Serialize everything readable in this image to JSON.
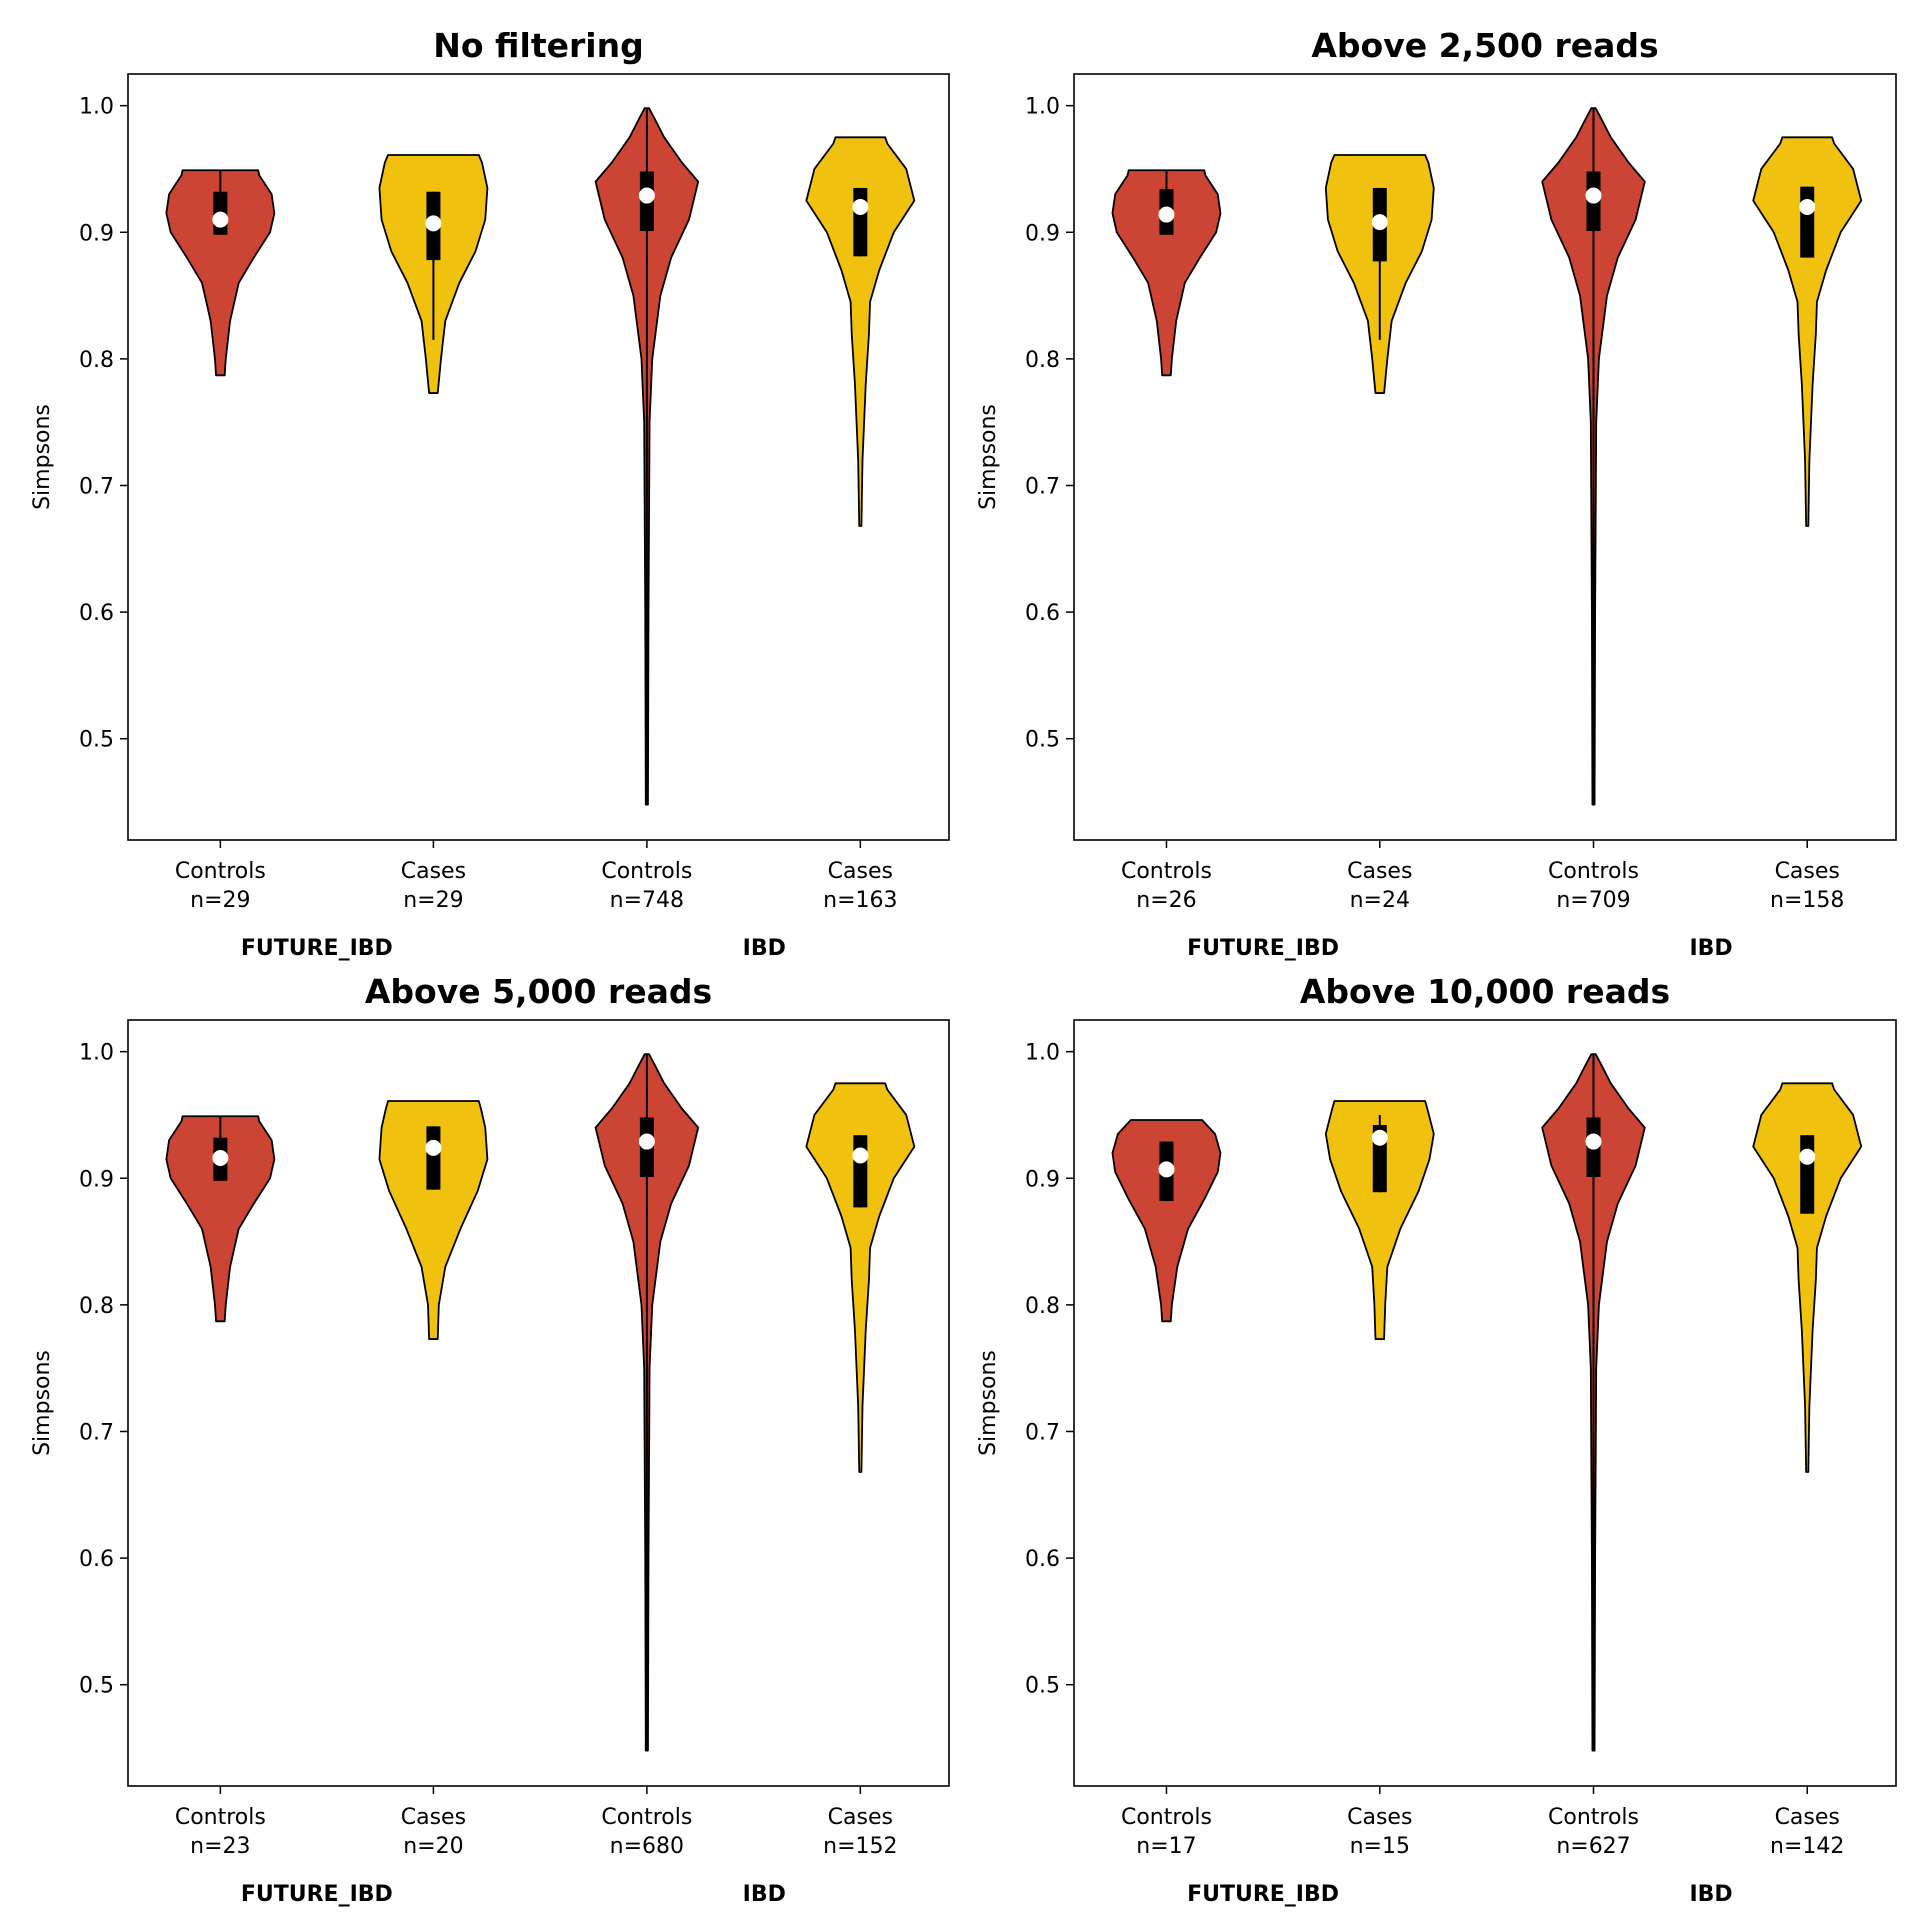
{
  "colors": {
    "controls": "#cc4433",
    "cases": "#f0c20f",
    "box": "#000000",
    "median": "#ffffff"
  },
  "chart_data": [
    {
      "type": "violin",
      "title": "No filtering",
      "ylabel": "Simpsons",
      "ylim": [
        0.42,
        1.025
      ],
      "yticks": [
        "0.5",
        "0.6",
        "0.7",
        "0.8",
        "0.9",
        "1.0"
      ],
      "groups": [
        "FUTURE_IBD",
        "IBD"
      ],
      "violins": [
        {
          "group": "FUTURE_IBD",
          "label": "Controls",
          "n": "n=29",
          "kind": "controls",
          "min": 0.787,
          "max": 0.949,
          "q1": 0.898,
          "median": 0.91,
          "q3": 0.932,
          "whisker_low": 0.898,
          "whisker_high": 0.949,
          "profile": [
            [
              0.787,
              0.08
            ],
            [
              0.8,
              0.1
            ],
            [
              0.83,
              0.18
            ],
            [
              0.86,
              0.34
            ],
            [
              0.88,
              0.62
            ],
            [
              0.9,
              0.92
            ],
            [
              0.915,
              1.0
            ],
            [
              0.93,
              0.95
            ],
            [
              0.945,
              0.72
            ],
            [
              0.949,
              0.7
            ]
          ]
        },
        {
          "group": "FUTURE_IBD",
          "label": "Cases",
          "n": "n=29",
          "kind": "cases",
          "min": 0.773,
          "max": 0.961,
          "q1": 0.878,
          "median": 0.907,
          "q3": 0.932,
          "whisker_low": 0.815,
          "whisker_high": 0.932,
          "profile": [
            [
              0.773,
              0.08
            ],
            [
              0.8,
              0.14
            ],
            [
              0.83,
              0.22
            ],
            [
              0.86,
              0.48
            ],
            [
              0.885,
              0.78
            ],
            [
              0.91,
              0.96
            ],
            [
              0.935,
              1.0
            ],
            [
              0.955,
              0.9
            ],
            [
              0.961,
              0.84
            ]
          ]
        },
        {
          "group": "IBD",
          "label": "Controls",
          "n": "n=748",
          "kind": "controls",
          "min": 0.448,
          "max": 0.998,
          "q1": 0.901,
          "median": 0.929,
          "q3": 0.948,
          "whisker_low": 0.448,
          "whisker_high": 0.998,
          "profile": [
            [
              0.448,
              0.02
            ],
            [
              0.6,
              0.03
            ],
            [
              0.75,
              0.05
            ],
            [
              0.8,
              0.1
            ],
            [
              0.85,
              0.25
            ],
            [
              0.88,
              0.45
            ],
            [
              0.91,
              0.78
            ],
            [
              0.94,
              0.95
            ],
            [
              0.955,
              0.65
            ],
            [
              0.975,
              0.32
            ],
            [
              0.99,
              0.14
            ],
            [
              0.998,
              0.04
            ]
          ]
        },
        {
          "group": "IBD",
          "label": "Cases",
          "n": "n=163",
          "kind": "cases",
          "min": 0.668,
          "max": 0.975,
          "q1": 0.881,
          "median": 0.92,
          "q3": 0.935,
          "whisker_low": 0.881,
          "whisker_high": 0.935,
          "profile": [
            [
              0.668,
              0.02
            ],
            [
              0.72,
              0.04
            ],
            [
              0.78,
              0.1
            ],
            [
              0.82,
              0.16
            ],
            [
              0.845,
              0.18
            ],
            [
              0.87,
              0.35
            ],
            [
              0.9,
              0.62
            ],
            [
              0.925,
              1.0
            ],
            [
              0.95,
              0.85
            ],
            [
              0.97,
              0.5
            ],
            [
              0.975,
              0.46
            ]
          ]
        }
      ]
    },
    {
      "type": "violin",
      "title": "Above 2,500 reads",
      "ylabel": "Simpsons",
      "ylim": [
        0.42,
        1.025
      ],
      "yticks": [
        "0.5",
        "0.6",
        "0.7",
        "0.8",
        "0.9",
        "1.0"
      ],
      "groups": [
        "FUTURE_IBD",
        "IBD"
      ],
      "violins": [
        {
          "group": "FUTURE_IBD",
          "label": "Controls",
          "n": "n=26",
          "kind": "controls",
          "min": 0.787,
          "max": 0.949,
          "q1": 0.898,
          "median": 0.914,
          "q3": 0.934,
          "whisker_low": 0.898,
          "whisker_high": 0.949,
          "profile": [
            [
              0.787,
              0.08
            ],
            [
              0.8,
              0.1
            ],
            [
              0.83,
              0.18
            ],
            [
              0.86,
              0.34
            ],
            [
              0.88,
              0.62
            ],
            [
              0.9,
              0.92
            ],
            [
              0.915,
              1.0
            ],
            [
              0.93,
              0.95
            ],
            [
              0.945,
              0.72
            ],
            [
              0.949,
              0.7
            ]
          ]
        },
        {
          "group": "FUTURE_IBD",
          "label": "Cases",
          "n": "n=24",
          "kind": "cases",
          "min": 0.773,
          "max": 0.961,
          "q1": 0.877,
          "median": 0.908,
          "q3": 0.935,
          "whisker_low": 0.815,
          "whisker_high": 0.935,
          "profile": [
            [
              0.773,
              0.08
            ],
            [
              0.8,
              0.14
            ],
            [
              0.83,
              0.22
            ],
            [
              0.86,
              0.48
            ],
            [
              0.885,
              0.78
            ],
            [
              0.91,
              0.96
            ],
            [
              0.935,
              1.0
            ],
            [
              0.955,
              0.9
            ],
            [
              0.961,
              0.84
            ]
          ]
        },
        {
          "group": "IBD",
          "label": "Controls",
          "n": "n=709",
          "kind": "controls",
          "min": 0.448,
          "max": 0.998,
          "q1": 0.901,
          "median": 0.929,
          "q3": 0.948,
          "whisker_low": 0.448,
          "whisker_high": 0.998,
          "profile": [
            [
              0.448,
              0.02
            ],
            [
              0.6,
              0.03
            ],
            [
              0.75,
              0.05
            ],
            [
              0.8,
              0.1
            ],
            [
              0.85,
              0.25
            ],
            [
              0.88,
              0.45
            ],
            [
              0.91,
              0.78
            ],
            [
              0.94,
              0.95
            ],
            [
              0.955,
              0.65
            ],
            [
              0.975,
              0.32
            ],
            [
              0.99,
              0.14
            ],
            [
              0.998,
              0.04
            ]
          ]
        },
        {
          "group": "IBD",
          "label": "Cases",
          "n": "n=158",
          "kind": "cases",
          "min": 0.668,
          "max": 0.975,
          "q1": 0.88,
          "median": 0.92,
          "q3": 0.936,
          "whisker_low": 0.88,
          "whisker_high": 0.936,
          "profile": [
            [
              0.668,
              0.02
            ],
            [
              0.72,
              0.04
            ],
            [
              0.78,
              0.1
            ],
            [
              0.82,
              0.16
            ],
            [
              0.845,
              0.18
            ],
            [
              0.87,
              0.35
            ],
            [
              0.9,
              0.62
            ],
            [
              0.925,
              1.0
            ],
            [
              0.95,
              0.85
            ],
            [
              0.97,
              0.5
            ],
            [
              0.975,
              0.46
            ]
          ]
        }
      ]
    },
    {
      "type": "violin",
      "title": "Above 5,000 reads",
      "ylabel": "Simpsons",
      "ylim": [
        0.42,
        1.025
      ],
      "yticks": [
        "0.5",
        "0.6",
        "0.7",
        "0.8",
        "0.9",
        "1.0"
      ],
      "groups": [
        "FUTURE_IBD",
        "IBD"
      ],
      "violins": [
        {
          "group": "FUTURE_IBD",
          "label": "Controls",
          "n": "n=23",
          "kind": "controls",
          "min": 0.787,
          "max": 0.949,
          "q1": 0.898,
          "median": 0.916,
          "q3": 0.932,
          "whisker_low": 0.898,
          "whisker_high": 0.949,
          "profile": [
            [
              0.787,
              0.08
            ],
            [
              0.8,
              0.1
            ],
            [
              0.83,
              0.18
            ],
            [
              0.86,
              0.34
            ],
            [
              0.88,
              0.62
            ],
            [
              0.9,
              0.92
            ],
            [
              0.915,
              1.0
            ],
            [
              0.93,
              0.95
            ],
            [
              0.945,
              0.72
            ],
            [
              0.949,
              0.7
            ]
          ]
        },
        {
          "group": "FUTURE_IBD",
          "label": "Cases",
          "n": "n=20",
          "kind": "cases",
          "min": 0.773,
          "max": 0.961,
          "q1": 0.891,
          "median": 0.924,
          "q3": 0.941,
          "whisker_low": 0.891,
          "whisker_high": 0.941,
          "profile": [
            [
              0.773,
              0.08
            ],
            [
              0.8,
              0.1
            ],
            [
              0.83,
              0.22
            ],
            [
              0.86,
              0.5
            ],
            [
              0.89,
              0.82
            ],
            [
              0.915,
              1.0
            ],
            [
              0.94,
              0.96
            ],
            [
              0.955,
              0.88
            ],
            [
              0.961,
              0.84
            ]
          ]
        },
        {
          "group": "IBD",
          "label": "Controls",
          "n": "n=680",
          "kind": "controls",
          "min": 0.448,
          "max": 0.998,
          "q1": 0.901,
          "median": 0.929,
          "q3": 0.948,
          "whisker_low": 0.448,
          "whisker_high": 0.998,
          "profile": [
            [
              0.448,
              0.02
            ],
            [
              0.6,
              0.03
            ],
            [
              0.75,
              0.05
            ],
            [
              0.8,
              0.1
            ],
            [
              0.85,
              0.25
            ],
            [
              0.88,
              0.45
            ],
            [
              0.91,
              0.78
            ],
            [
              0.94,
              0.95
            ],
            [
              0.955,
              0.65
            ],
            [
              0.975,
              0.32
            ],
            [
              0.99,
              0.14
            ],
            [
              0.998,
              0.04
            ]
          ]
        },
        {
          "group": "IBD",
          "label": "Cases",
          "n": "n=152",
          "kind": "cases",
          "min": 0.668,
          "max": 0.975,
          "q1": 0.877,
          "median": 0.918,
          "q3": 0.934,
          "whisker_low": 0.877,
          "whisker_high": 0.934,
          "profile": [
            [
              0.668,
              0.02
            ],
            [
              0.72,
              0.04
            ],
            [
              0.78,
              0.1
            ],
            [
              0.82,
              0.16
            ],
            [
              0.845,
              0.18
            ],
            [
              0.87,
              0.35
            ],
            [
              0.9,
              0.62
            ],
            [
              0.925,
              1.0
            ],
            [
              0.95,
              0.85
            ],
            [
              0.97,
              0.5
            ],
            [
              0.975,
              0.46
            ]
          ]
        }
      ]
    },
    {
      "type": "violin",
      "title": "Above 10,000 reads",
      "ylabel": "Simpsons",
      "ylim": [
        0.42,
        1.025
      ],
      "yticks": [
        "0.5",
        "0.6",
        "0.7",
        "0.8",
        "0.9",
        "1.0"
      ],
      "groups": [
        "FUTURE_IBD",
        "IBD"
      ],
      "violins": [
        {
          "group": "FUTURE_IBD",
          "label": "Controls",
          "n": "n=17",
          "kind": "controls",
          "min": 0.787,
          "max": 0.946,
          "q1": 0.882,
          "median": 0.907,
          "q3": 0.929,
          "whisker_low": 0.882,
          "whisker_high": 0.929,
          "profile": [
            [
              0.787,
              0.08
            ],
            [
              0.8,
              0.1
            ],
            [
              0.83,
              0.2
            ],
            [
              0.86,
              0.4
            ],
            [
              0.885,
              0.72
            ],
            [
              0.905,
              0.95
            ],
            [
              0.92,
              1.0
            ],
            [
              0.935,
              0.9
            ],
            [
              0.946,
              0.66
            ]
          ]
        },
        {
          "group": "FUTURE_IBD",
          "label": "Cases",
          "n": "n=15",
          "kind": "cases",
          "min": 0.773,
          "max": 0.961,
          "q1": 0.889,
          "median": 0.932,
          "q3": 0.942,
          "whisker_low": 0.889,
          "whisker_high": 0.95,
          "profile": [
            [
              0.773,
              0.08
            ],
            [
              0.8,
              0.1
            ],
            [
              0.83,
              0.14
            ],
            [
              0.86,
              0.38
            ],
            [
              0.89,
              0.72
            ],
            [
              0.915,
              0.92
            ],
            [
              0.935,
              1.0
            ],
            [
              0.955,
              0.88
            ],
            [
              0.961,
              0.84
            ]
          ]
        },
        {
          "group": "IBD",
          "label": "Controls",
          "n": "n=627",
          "kind": "controls",
          "min": 0.448,
          "max": 0.998,
          "q1": 0.901,
          "median": 0.929,
          "q3": 0.948,
          "whisker_low": 0.448,
          "whisker_high": 0.998,
          "profile": [
            [
              0.448,
              0.02
            ],
            [
              0.6,
              0.03
            ],
            [
              0.75,
              0.05
            ],
            [
              0.8,
              0.1
            ],
            [
              0.85,
              0.25
            ],
            [
              0.88,
              0.45
            ],
            [
              0.91,
              0.78
            ],
            [
              0.94,
              0.95
            ],
            [
              0.955,
              0.65
            ],
            [
              0.975,
              0.32
            ],
            [
              0.99,
              0.14
            ],
            [
              0.998,
              0.04
            ]
          ]
        },
        {
          "group": "IBD",
          "label": "Cases",
          "n": "n=142",
          "kind": "cases",
          "min": 0.668,
          "max": 0.975,
          "q1": 0.872,
          "median": 0.917,
          "q3": 0.934,
          "whisker_low": 0.872,
          "whisker_high": 0.934,
          "profile": [
            [
              0.668,
              0.02
            ],
            [
              0.72,
              0.04
            ],
            [
              0.78,
              0.1
            ],
            [
              0.82,
              0.16
            ],
            [
              0.845,
              0.18
            ],
            [
              0.87,
              0.35
            ],
            [
              0.9,
              0.62
            ],
            [
              0.925,
              1.0
            ],
            [
              0.95,
              0.85
            ],
            [
              0.97,
              0.5
            ],
            [
              0.975,
              0.46
            ]
          ]
        }
      ]
    }
  ]
}
